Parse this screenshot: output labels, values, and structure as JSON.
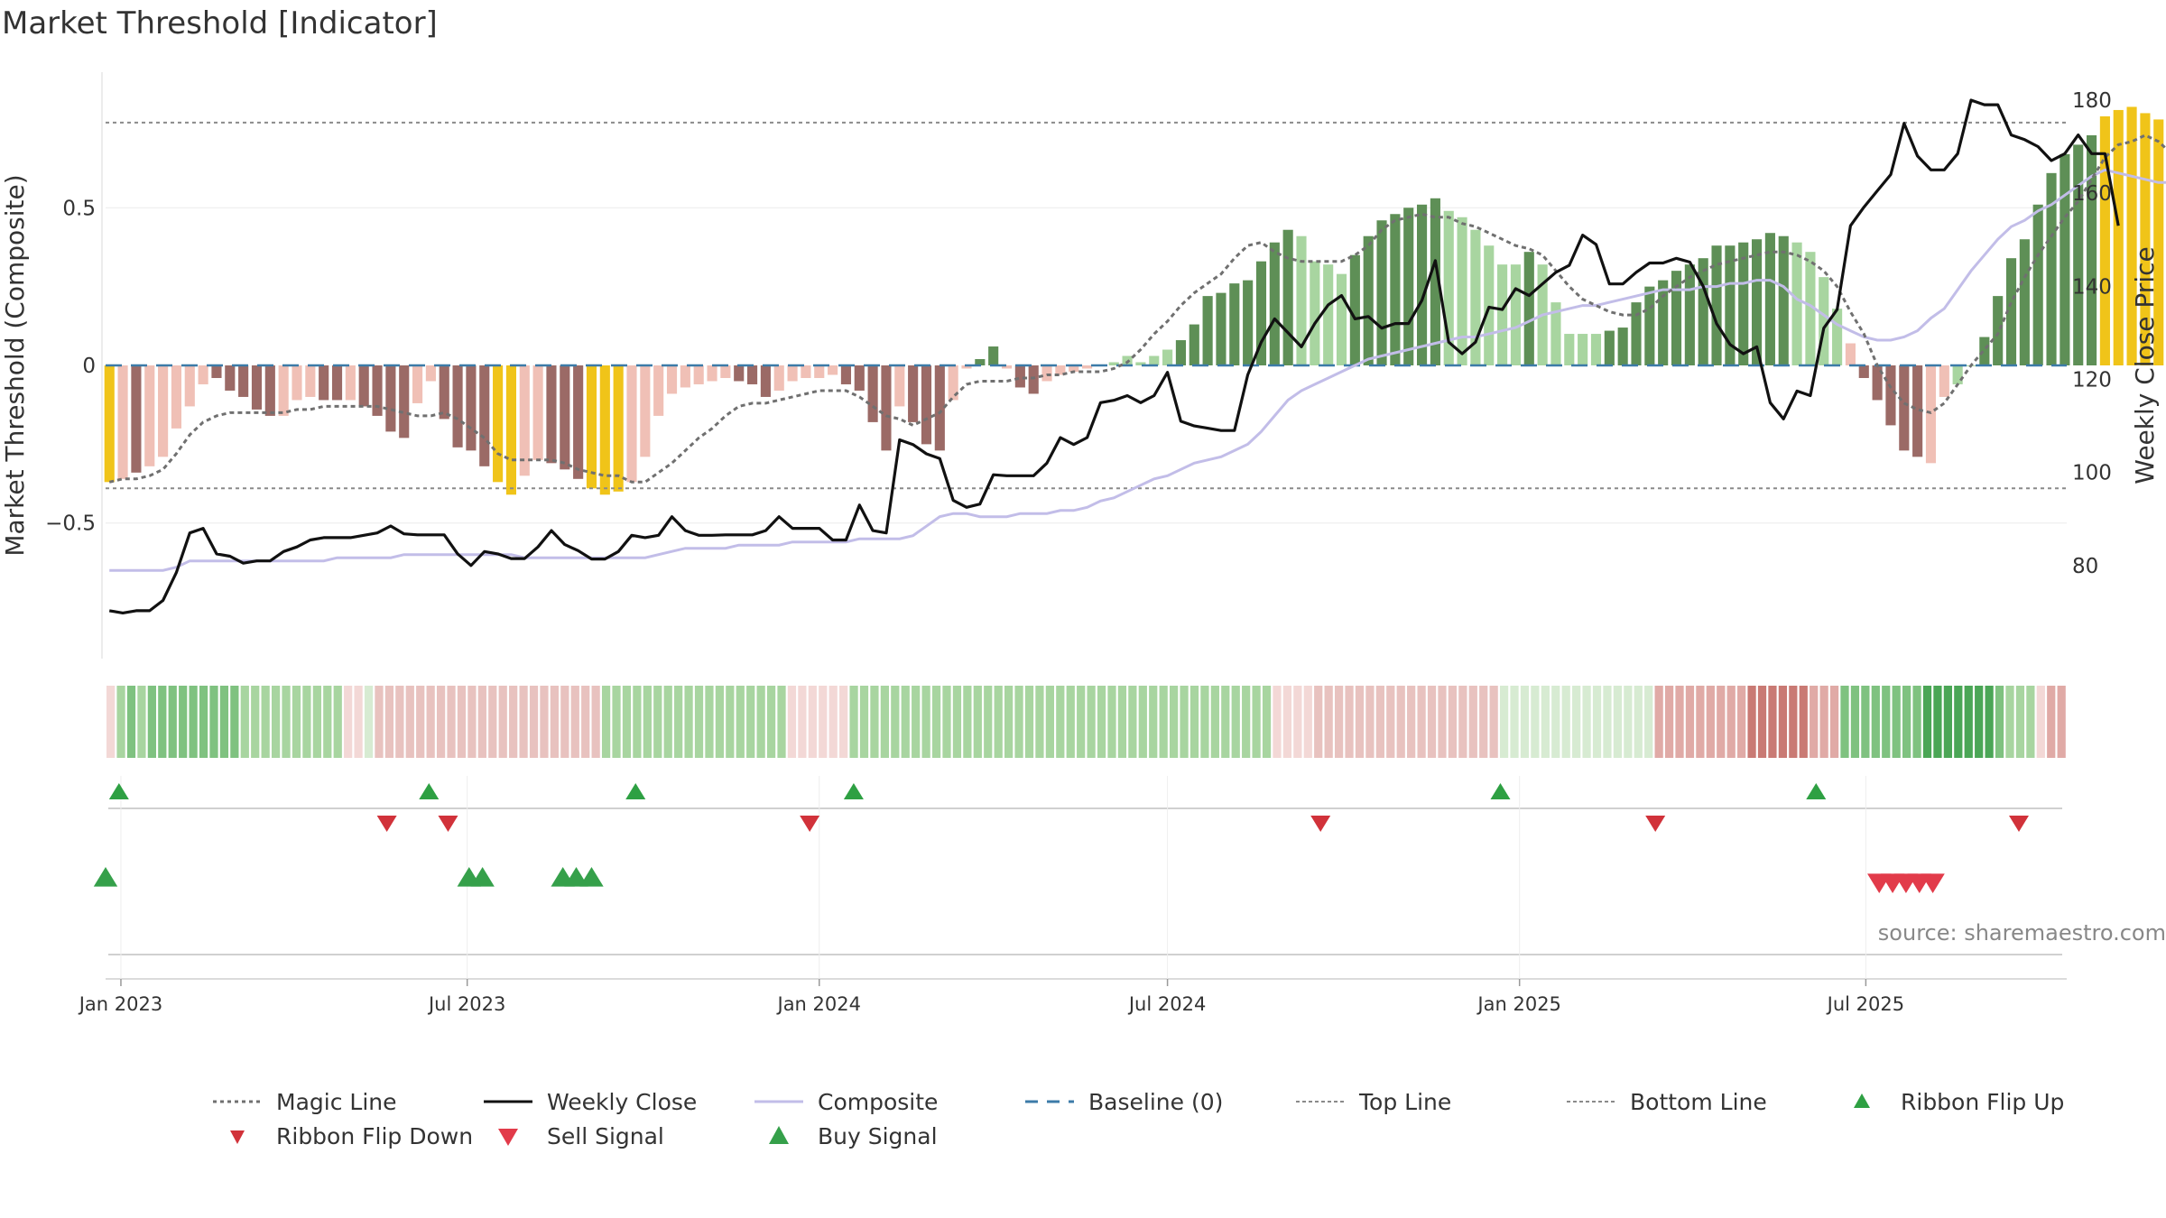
{
  "chart_data": {
    "type": "bar",
    "title": "Market Threshold [Indicator]",
    "ylabel_left": "Market Threshold (Composite)",
    "ylabel_right": "Weekly Close Price",
    "source": "source: sharemaestro.com",
    "y_left_ticks": [
      0.5,
      0,
      -0.5
    ],
    "y_left_tick_labels": [
      "0.5",
      "0",
      "−0.5"
    ],
    "y_left_range": [
      -0.93,
      0.93
    ],
    "y_right_ticks": [
      180,
      160,
      140,
      120,
      100,
      80
    ],
    "y_right_range": [
      60,
      186
    ],
    "top_line": 0.77,
    "bottom_line": -0.39,
    "baseline": 0,
    "x_range": [
      "2022-12-24",
      "2025-10-14"
    ],
    "x_tick_dates": [
      "2023-01-01",
      "2023-07-01",
      "2024-01-01",
      "2024-07-01",
      "2025-01-01",
      "2025-07-01"
    ],
    "x_tick_labels": [
      "Jan 2023",
      "Jul 2023",
      "Jan 2024",
      "Jul 2024",
      "Jan 2025",
      "Jul 2025"
    ],
    "weeks_start": "2022-12-26",
    "composite_bars": [
      -0.37,
      -0.36,
      -0.34,
      -0.32,
      -0.29,
      -0.2,
      -0.13,
      -0.06,
      -0.04,
      -0.08,
      -0.1,
      -0.14,
      -0.16,
      -0.16,
      -0.11,
      -0.1,
      -0.11,
      -0.11,
      -0.11,
      -0.13,
      -0.16,
      -0.21,
      -0.23,
      -0.12,
      -0.05,
      -0.17,
      -0.26,
      -0.27,
      -0.32,
      -0.37,
      -0.41,
      -0.35,
      -0.3,
      -0.31,
      -0.33,
      -0.36,
      -0.39,
      -0.41,
      -0.4,
      -0.37,
      -0.29,
      -0.16,
      -0.09,
      -0.07,
      -0.06,
      -0.05,
      -0.04,
      -0.05,
      -0.06,
      -0.1,
      -0.08,
      -0.05,
      -0.04,
      -0.04,
      -0.03,
      -0.06,
      -0.08,
      -0.18,
      -0.27,
      -0.13,
      -0.18,
      -0.25,
      -0.27,
      -0.11,
      -0.01,
      0.02,
      0.06,
      -0.01,
      -0.07,
      -0.09,
      -0.05,
      -0.03,
      -0.02,
      -0.01,
      0.0,
      0.01,
      0.03,
      0.01,
      0.03,
      0.05,
      0.08,
      0.13,
      0.22,
      0.23,
      0.26,
      0.27,
      0.33,
      0.39,
      0.43,
      0.41,
      0.33,
      0.32,
      0.29,
      0.35,
      0.41,
      0.46,
      0.48,
      0.5,
      0.51,
      0.53,
      0.49,
      0.47,
      0.43,
      0.38,
      0.32,
      0.32,
      0.36,
      0.32,
      0.2,
      0.1,
      0.1,
      0.1,
      0.11,
      0.12,
      0.2,
      0.25,
      0.27,
      0.3,
      0.32,
      0.34,
      0.38,
      0.38,
      0.39,
      0.4,
      0.42,
      0.41,
      0.39,
      0.36,
      0.28,
      0.18,
      0.07,
      -0.04,
      -0.11,
      -0.19,
      -0.27,
      -0.29,
      -0.31,
      -0.1,
      -0.06,
      0.0,
      0.09,
      0.22,
      0.34,
      0.4,
      0.51,
      0.61,
      0.67,
      0.7,
      0.73,
      0.79,
      0.81,
      0.82,
      0.8,
      0.78,
      0.74,
      0.7,
      0.65,
      0.6,
      0.52,
      0.46,
      0.38,
      0.33,
      0.24
    ],
    "bar_colors": [
      "#f0c419",
      "#f0c0b6",
      "#9b6a66",
      "#f0c0b6",
      "#f0c0b6",
      "#f0c0b6",
      "#f0c0b6",
      "#f0c0b6",
      "#9b6a66",
      "#9b6a66",
      "#9b6a66",
      "#9b6a66",
      "#9b6a66",
      "#f0c0b6",
      "#f0c0b6",
      "#f0c0b6",
      "#9b6a66",
      "#9b6a66",
      "#f0c0b6",
      "#9b6a66",
      "#9b6a66",
      "#9b6a66",
      "#9b6a66",
      "#f0c0b6",
      "#f0c0b6",
      "#9b6a66",
      "#9b6a66",
      "#9b6a66",
      "#9b6a66",
      "#f0c419",
      "#f0c419",
      "#f0c0b6",
      "#f0c0b6",
      "#9b6a66",
      "#9b6a66",
      "#9b6a66",
      "#f0c419",
      "#f0c419",
      "#f0c419",
      "#f0c0b6",
      "#f0c0b6",
      "#f0c0b6",
      "#f0c0b6",
      "#f0c0b6",
      "#f0c0b6",
      "#f0c0b6",
      "#f0c0b6",
      "#9b6a66",
      "#9b6a66",
      "#9b6a66",
      "#f0c0b6",
      "#f0c0b6",
      "#f0c0b6",
      "#f0c0b6",
      "#f0c0b6",
      "#9b6a66",
      "#9b6a66",
      "#9b6a66",
      "#9b6a66",
      "#f0c0b6",
      "#9b6a66",
      "#9b6a66",
      "#9b6a66",
      "#f0c0b6",
      "#f0c0b6",
      "#5e8f56",
      "#5e8f56",
      "#f0c0b6",
      "#9b6a66",
      "#9b6a66",
      "#f0c0b6",
      "#f0c0b6",
      "#f0c0b6",
      "#f0c0b6",
      "#f0c0b6",
      "#a8d5a0",
      "#a8d5a0",
      "#a8d5a0",
      "#a8d5a0",
      "#a8d5a0",
      "#5e8f56",
      "#5e8f56",
      "#5e8f56",
      "#5e8f56",
      "#5e8f56",
      "#5e8f56",
      "#5e8f56",
      "#5e8f56",
      "#5e8f56",
      "#a8d5a0",
      "#a8d5a0",
      "#a8d5a0",
      "#a8d5a0",
      "#5e8f56",
      "#5e8f56",
      "#5e8f56",
      "#5e8f56",
      "#5e8f56",
      "#5e8f56",
      "#5e8f56",
      "#a8d5a0",
      "#a8d5a0",
      "#a8d5a0",
      "#a8d5a0",
      "#a8d5a0",
      "#a8d5a0",
      "#5e8f56",
      "#a8d5a0",
      "#a8d5a0",
      "#a8d5a0",
      "#a8d5a0",
      "#a8d5a0",
      "#5e8f56",
      "#5e8f56",
      "#5e8f56",
      "#5e8f56",
      "#5e8f56",
      "#5e8f56",
      "#5e8f56",
      "#5e8f56",
      "#5e8f56",
      "#5e8f56",
      "#5e8f56",
      "#5e8f56",
      "#5e8f56",
      "#5e8f56",
      "#a8d5a0",
      "#a8d5a0",
      "#a8d5a0",
      "#a8d5a0",
      "#f0c0b6",
      "#9b6a66",
      "#9b6a66",
      "#9b6a66",
      "#9b6a66",
      "#9b6a66",
      "#f0c0b6",
      "#f0c0b6",
      "#a8d5a0",
      "#a8d5a0",
      "#5e8f56",
      "#5e8f56",
      "#5e8f56",
      "#5e8f56",
      "#5e8f56",
      "#5e8f56",
      "#5e8f56",
      "#5e8f56",
      "#5e8f56",
      "#f0c419",
      "#f0c419",
      "#f0c419",
      "#f0c419",
      "#f0c419",
      "#a8d5a0",
      "#a8d5a0",
      "#a8d5a0",
      "#a8d5a0",
      "#a8d5a0",
      "#a8d5a0",
      "#a8d5a0",
      "#a8d5a0"
    ],
    "weekly_close": [
      70.3,
      69.8,
      70.3,
      70.3,
      72.5,
      78.5,
      87.0,
      88.0,
      82.5,
      82.0,
      80.5,
      81.0,
      81.0,
      83.0,
      84.0,
      85.5,
      86.0,
      86.0,
      86.0,
      86.5,
      87.0,
      88.5,
      86.8,
      86.6,
      86.6,
      86.6,
      82.5,
      80.0,
      83.0,
      82.5,
      81.5,
      81.5,
      84.0,
      87.5,
      84.5,
      83.2,
      81.4,
      81.4,
      83.0,
      86.5,
      86.0,
      86.5,
      90.5,
      87.5,
      86.5,
      86.5,
      86.6,
      86.6,
      86.6,
      87.5,
      90.5,
      88.0,
      88.0,
      88.0,
      85.5,
      85.5,
      93.0,
      87.5,
      87.0,
      107.0,
      106.0,
      104.0,
      103.0,
      94.0,
      92.5,
      93.2,
      99.5,
      99.3,
      99.3,
      99.3,
      102.0,
      107.5,
      106.0,
      107.5,
      115.0,
      115.5,
      116.5,
      115.0,
      116.5,
      121.5,
      111.0,
      110.0,
      109.5,
      109.0,
      109.0,
      121.0,
      128.0,
      133.0,
      130.0,
      127.0,
      132.0,
      136.0,
      138.0,
      133.0,
      133.5,
      131.0,
      132.0,
      132.0,
      137.0,
      145.5,
      128.0,
      125.5,
      128.0,
      135.5,
      135.0,
      139.5,
      138.0,
      140.5,
      143.0,
      144.5,
      151.0,
      149.0,
      140.5,
      140.5,
      143.0,
      145.0,
      145.0,
      146.0,
      145.2,
      140.0,
      132.0,
      127.5,
      125.5,
      127.0,
      115.0,
      111.5,
      117.5,
      116.5,
      131.0,
      135.0,
      153.0,
      157.0,
      160.5,
      164.0,
      175.0,
      168.0,
      165.0,
      165.0,
      168.5,
      180.0,
      179.0,
      179.0,
      172.5,
      171.5,
      170.0,
      167.0,
      168.5,
      172.5,
      168.5,
      168.5,
      153.0
    ],
    "composite_line": [
      -0.65,
      -0.65,
      -0.65,
      -0.65,
      -0.65,
      -0.64,
      -0.62,
      -0.62,
      -0.62,
      -0.62,
      -0.62,
      -0.62,
      -0.62,
      -0.62,
      -0.62,
      -0.62,
      -0.62,
      -0.61,
      -0.61,
      -0.61,
      -0.61,
      -0.61,
      -0.6,
      -0.6,
      -0.6,
      -0.6,
      -0.6,
      -0.6,
      -0.6,
      -0.6,
      -0.6,
      -0.61,
      -0.61,
      -0.61,
      -0.61,
      -0.61,
      -0.61,
      -0.61,
      -0.61,
      -0.61,
      -0.61,
      -0.6,
      -0.59,
      -0.58,
      -0.58,
      -0.58,
      -0.58,
      -0.57,
      -0.57,
      -0.57,
      -0.57,
      -0.56,
      -0.56,
      -0.56,
      -0.56,
      -0.56,
      -0.55,
      -0.55,
      -0.55,
      -0.55,
      -0.54,
      -0.51,
      -0.48,
      -0.47,
      -0.47,
      -0.48,
      -0.48,
      -0.48,
      -0.47,
      -0.47,
      -0.47,
      -0.46,
      -0.46,
      -0.45,
      -0.43,
      -0.42,
      -0.4,
      -0.38,
      -0.36,
      -0.35,
      -0.33,
      -0.31,
      -0.3,
      -0.29,
      -0.27,
      -0.25,
      -0.21,
      -0.16,
      -0.11,
      -0.08,
      -0.06,
      -0.04,
      -0.02,
      0.0,
      0.02,
      0.03,
      0.04,
      0.05,
      0.06,
      0.07,
      0.08,
      0.09,
      0.09,
      0.1,
      0.11,
      0.12,
      0.14,
      0.16,
      0.17,
      0.18,
      0.19,
      0.19,
      0.2,
      0.21,
      0.22,
      0.23,
      0.24,
      0.24,
      0.24,
      0.25,
      0.25,
      0.26,
      0.26,
      0.27,
      0.27,
      0.25,
      0.21,
      0.19,
      0.16,
      0.13,
      0.11,
      0.09,
      0.08,
      0.08,
      0.09,
      0.11,
      0.15,
      0.18,
      0.24,
      0.3,
      0.35,
      0.4,
      0.44,
      0.46,
      0.49,
      0.51,
      0.54,
      0.57,
      0.6,
      0.62,
      0.61,
      0.6,
      0.59,
      0.58,
      0.58,
      0.58,
      0.58,
      0.58,
      0.58,
      0.56
    ],
    "magic_line": [
      -0.37,
      -0.36,
      -0.36,
      -0.35,
      -0.33,
      -0.28,
      -0.22,
      -0.18,
      -0.16,
      -0.15,
      -0.15,
      -0.15,
      -0.15,
      -0.15,
      -0.14,
      -0.14,
      -0.13,
      -0.13,
      -0.13,
      -0.13,
      -0.13,
      -0.14,
      -0.15,
      -0.16,
      -0.16,
      -0.15,
      -0.17,
      -0.2,
      -0.23,
      -0.28,
      -0.3,
      -0.3,
      -0.3,
      -0.3,
      -0.31,
      -0.33,
      -0.34,
      -0.35,
      -0.35,
      -0.37,
      -0.37,
      -0.34,
      -0.31,
      -0.27,
      -0.23,
      -0.2,
      -0.16,
      -0.13,
      -0.12,
      -0.12,
      -0.11,
      -0.1,
      -0.09,
      -0.08,
      -0.08,
      -0.08,
      -0.1,
      -0.13,
      -0.16,
      -0.17,
      -0.19,
      -0.17,
      -0.15,
      -0.1,
      -0.06,
      -0.05,
      -0.05,
      -0.05,
      -0.04,
      -0.04,
      -0.03,
      -0.03,
      -0.02,
      -0.02,
      -0.02,
      -0.01,
      0.01,
      0.05,
      0.1,
      0.14,
      0.19,
      0.23,
      0.26,
      0.29,
      0.34,
      0.38,
      0.39,
      0.36,
      0.34,
      0.33,
      0.33,
      0.33,
      0.33,
      0.35,
      0.38,
      0.43,
      0.46,
      0.47,
      0.48,
      0.47,
      0.47,
      0.45,
      0.44,
      0.42,
      0.4,
      0.38,
      0.37,
      0.35,
      0.3,
      0.25,
      0.21,
      0.19,
      0.17,
      0.16,
      0.16,
      0.18,
      0.22,
      0.25,
      0.28,
      0.3,
      0.32,
      0.33,
      0.34,
      0.35,
      0.36,
      0.36,
      0.35,
      0.33,
      0.3,
      0.25,
      0.17,
      0.1,
      0.0,
      -0.07,
      -0.12,
      -0.14,
      -0.15,
      -0.12,
      -0.06,
      0.0,
      0.05,
      0.1,
      0.2,
      0.28,
      0.35,
      0.41,
      0.47,
      0.52,
      0.59,
      0.66,
      0.7,
      0.71,
      0.73,
      0.71,
      0.67,
      0.64,
      0.6,
      0.54,
      0.49,
      0.45
    ],
    "ribbon_colors": [
      "#f3d8d6",
      "#a8d5a0",
      "#7fc280",
      "#a8d5a0",
      "#7fc280",
      "#7fc280",
      "#7fc280",
      "#7fc280",
      "#7fc280",
      "#7fc280",
      "#7fc280",
      "#7fc280",
      "#7fc280",
      "#a8d5a0",
      "#a8d5a0",
      "#a8d5a0",
      "#a8d5a0",
      "#a8d5a0",
      "#a8d5a0",
      "#a8d5a0",
      "#a8d5a0",
      "#a8d5a0",
      "#a8d5a0",
      "#f3d8d6",
      "#f3d8d6",
      "#d7ebd2",
      "#e8c2bf",
      "#e8c2bf",
      "#e8c2bf",
      "#e8c2bf",
      "#e8c2bf",
      "#e8c2bf",
      "#e8c2bf",
      "#e8c2bf",
      "#e8c2bf",
      "#e8c2bf",
      "#e8c2bf",
      "#e8c2bf",
      "#e8c2bf",
      "#e8c2bf",
      "#e8c2bf",
      "#e8c2bf",
      "#e8c2bf",
      "#e8c2bf",
      "#e8c2bf",
      "#e8c2bf",
      "#e8c2bf",
      "#e8c2bf",
      "#a8d5a0",
      "#a8d5a0",
      "#a8d5a0",
      "#a8d5a0",
      "#a8d5a0",
      "#a8d5a0",
      "#a8d5a0",
      "#a8d5a0",
      "#a8d5a0",
      "#a8d5a0",
      "#a8d5a0",
      "#a8d5a0",
      "#a8d5a0",
      "#a8d5a0",
      "#a8d5a0",
      "#a8d5a0",
      "#a8d5a0",
      "#a8d5a0",
      "#f3d8d6",
      "#f3d8d6",
      "#f3d8d6",
      "#f3d8d6",
      "#f3d8d6",
      "#f3d8d6",
      "#a8d5a0",
      "#a8d5a0",
      "#a8d5a0",
      "#a8d5a0",
      "#a8d5a0",
      "#a8d5a0",
      "#a8d5a0",
      "#a8d5a0",
      "#a8d5a0",
      "#a8d5a0",
      "#a8d5a0",
      "#a8d5a0",
      "#a8d5a0",
      "#a8d5a0",
      "#a8d5a0",
      "#a8d5a0",
      "#a8d5a0",
      "#a8d5a0",
      "#a8d5a0",
      "#a8d5a0",
      "#a8d5a0",
      "#a8d5a0",
      "#a8d5a0",
      "#a8d5a0",
      "#a8d5a0",
      "#a8d5a0",
      "#a8d5a0",
      "#a8d5a0",
      "#a8d5a0",
      "#a8d5a0",
      "#a8d5a0",
      "#a8d5a0",
      "#a8d5a0",
      "#a8d5a0",
      "#a8d5a0",
      "#a8d5a0",
      "#a8d5a0",
      "#a8d5a0",
      "#a8d5a0",
      "#a8d5a0",
      "#a8d5a0",
      "#f3d8d6",
      "#f3d8d6",
      "#f3d8d6",
      "#f3d8d6",
      "#e8c2bf",
      "#e8c2bf",
      "#e8c2bf",
      "#e8c2bf",
      "#e8c2bf",
      "#e8c2bf",
      "#e8c2bf",
      "#e8c2bf",
      "#e8c2bf",
      "#e8c2bf",
      "#e8c2bf",
      "#e8c2bf",
      "#e8c2bf",
      "#e8c2bf",
      "#e8c2bf",
      "#e8c2bf",
      "#e8c2bf",
      "#e8c2bf",
      "#d7ebd2",
      "#d7ebd2",
      "#d7ebd2",
      "#d7ebd2",
      "#d7ebd2",
      "#d7ebd2",
      "#d7ebd2",
      "#d7ebd2",
      "#d7ebd2",
      "#d7ebd2",
      "#d7ebd2",
      "#d7ebd2",
      "#d7ebd2",
      "#d7ebd2",
      "#d7ebd2",
      "#e0aaa6",
      "#e0aaa6",
      "#e0aaa6",
      "#e0aaa6",
      "#e0aaa6",
      "#e0aaa6",
      "#e0aaa6",
      "#e0aaa6",
      "#e0aaa6",
      "#c97a74",
      "#c97a74",
      "#c97a74",
      "#c97a74",
      "#c97a74",
      "#c97a74",
      "#e0aaa6",
      "#e0aaa6",
      "#e0aaa6",
      "#7fc280",
      "#7fc280",
      "#7fc280",
      "#7fc280",
      "#7fc280",
      "#7fc280",
      "#7fc280",
      "#7fc280",
      "#4ba656",
      "#4ba656",
      "#4ba656",
      "#4ba656",
      "#4ba656",
      "#4ba656",
      "#4ba656",
      "#7fc280",
      "#a8d5a0",
      "#a8d5a0",
      "#a8d5a0",
      "#f3d8d6",
      "#e0aaa6",
      "#e0aaa6"
    ],
    "ribbon_flip_up_dates": [
      "2022-12-31",
      "2023-06-11",
      "2023-09-27",
      "2024-01-19",
      "2024-12-22",
      "2025-06-05"
    ],
    "ribbon_flip_down_dates": [
      "2023-05-20",
      "2023-06-21",
      "2023-12-27",
      "2024-09-19",
      "2025-03-13",
      "2025-09-19"
    ],
    "buy_signal_dates": [
      "2022-12-24",
      "2023-07-02",
      "2023-07-09",
      "2023-08-20",
      "2023-08-27",
      "2023-09-04"
    ],
    "sell_signal_dates": [
      "2025-07-08",
      "2025-07-15",
      "2025-07-22",
      "2025-07-29",
      "2025-08-05"
    ],
    "legend_position": "bottom",
    "legend": [
      [
        "Magic Line",
        "Weekly Close",
        "Composite",
        "Baseline (0)",
        "Top Line",
        "Bottom Line",
        "Ribbon Flip Up"
      ],
      [
        "Ribbon Flip Down",
        "Sell Signal",
        "Buy Signal"
      ]
    ],
    "legend_styles": [
      [
        "dotted",
        "solid-black",
        "solid-lavender",
        "dashed-blue",
        "dashed-gray",
        "dashed-gray",
        "triangle-up-green"
      ],
      [
        "triangle-down-red",
        "triangle-down-lightred",
        "triangle-up-lightgreen"
      ]
    ],
    "colors": {
      "yellow": "#f0c419",
      "dark_red": "#9b6a66",
      "light_red": "#f0c0b6",
      "dark_green": "#5e8f56",
      "light_green": "#a8d5a0",
      "composite": "#c2bde8",
      "magic": "#707070",
      "close": "#111111",
      "baseline": "#3c7ba8",
      "flip_up": "#2ea043",
      "flip_down": "#d1323a",
      "buy": "#35a04a",
      "sell": "#e23b4a"
    }
  }
}
